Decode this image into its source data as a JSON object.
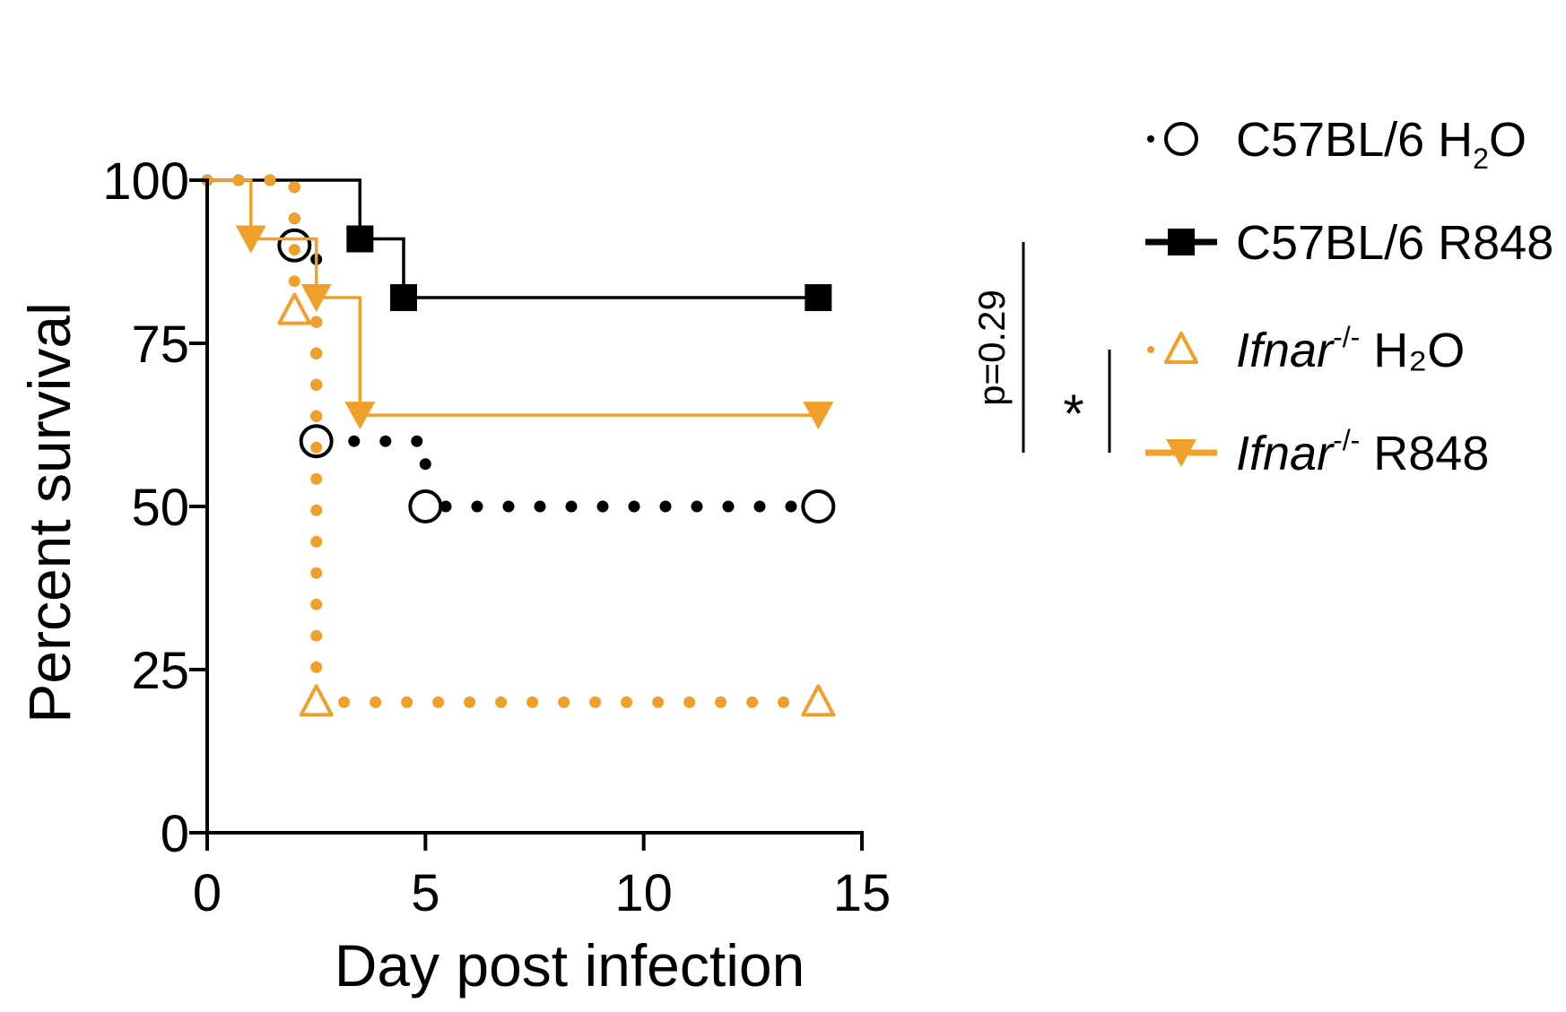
{
  "chart_data": {
    "type": "line",
    "subtype": "kaplan-meier survival",
    "xlabel": "Day post infection",
    "ylabel": "Percent survival",
    "xlim": [
      0,
      15
    ],
    "ylim": [
      0,
      100
    ],
    "xticks": [
      0,
      5,
      10,
      15
    ],
    "yticks": [
      0,
      25,
      50,
      75,
      100
    ],
    "grid": false,
    "legend_position": "right",
    "series": [
      {
        "key": "c57_h2o",
        "legend": {
          "prefix": "C57BL/6 H",
          "sub": "2",
          "suffix": "O",
          "italic": "",
          "sup": ""
        },
        "color": "#000000",
        "line_style": "dotted",
        "marker": "open-circle",
        "steps": [
          [
            0,
            100
          ],
          [
            2,
            90
          ],
          [
            2.5,
            60
          ],
          [
            5,
            50
          ],
          [
            14,
            50
          ]
        ],
        "markers": [
          [
            2,
            90
          ],
          [
            2.5,
            60
          ],
          [
            5,
            50
          ],
          [
            14,
            50
          ]
        ]
      },
      {
        "key": "c57_r848",
        "legend": {
          "prefix": "C57BL/6 R848",
          "sub": "",
          "suffix": "",
          "italic": "",
          "sup": ""
        },
        "color": "#000000",
        "line_style": "solid",
        "marker": "filled-square",
        "steps": [
          [
            0,
            100
          ],
          [
            3.5,
            91
          ],
          [
            4.5,
            82
          ],
          [
            14,
            82
          ]
        ],
        "markers": [
          [
            3.5,
            91
          ],
          [
            4.5,
            82
          ],
          [
            14,
            82
          ]
        ]
      },
      {
        "key": "ifnar_h2o",
        "legend": {
          "prefix": "",
          "sub": "",
          "suffix": " H₂O",
          "italic": "Ifnar",
          "sup": "-/-"
        },
        "color": "#f0a02a",
        "line_style": "dotted",
        "marker": "open-triangle-up",
        "steps": [
          [
            0,
            100
          ],
          [
            2,
            80
          ],
          [
            2.5,
            20
          ],
          [
            14,
            20
          ]
        ],
        "markers": [
          [
            2,
            80
          ],
          [
            2.5,
            20
          ],
          [
            14,
            20
          ]
        ]
      },
      {
        "key": "ifnar_r848",
        "legend": {
          "prefix": "",
          "sub": "",
          "suffix": " R848",
          "italic": "Ifnar",
          "sup": "-/-"
        },
        "color": "#f0a02a",
        "line_style": "solid",
        "marker": "filled-triangle-down",
        "steps": [
          [
            0,
            100
          ],
          [
            1,
            91
          ],
          [
            2.5,
            82
          ],
          [
            3.5,
            64
          ],
          [
            14,
            64
          ]
        ],
        "markers": [
          [
            1,
            91
          ],
          [
            2.5,
            82
          ],
          [
            3.5,
            64
          ],
          [
            14,
            64
          ]
        ]
      }
    ],
    "annotations": [
      {
        "text": "p=0.29",
        "between": [
          "c57_h2o",
          "c57_r848"
        ]
      },
      {
        "text": "*",
        "between": [
          "ifnar_h2o",
          "ifnar_r848"
        ]
      }
    ]
  }
}
